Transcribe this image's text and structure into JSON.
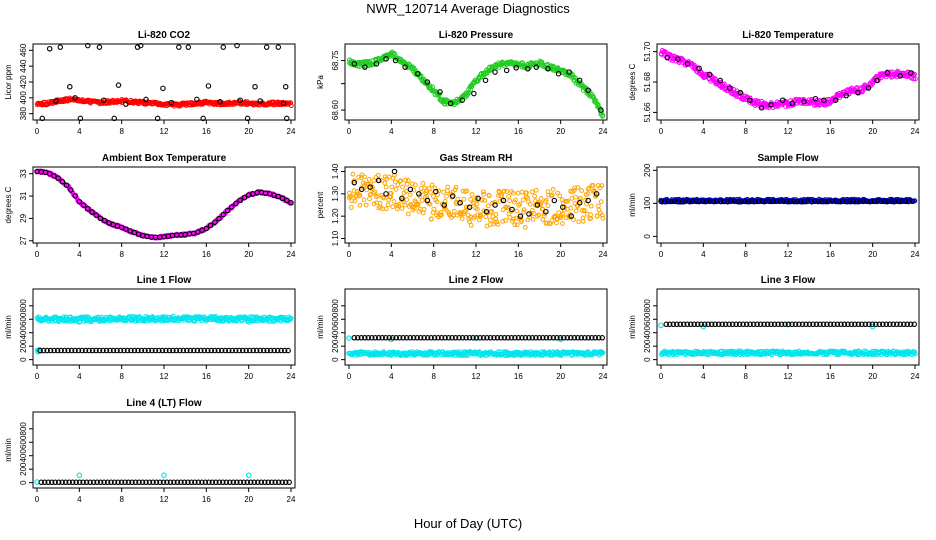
{
  "title": "NWR_120714  Average Diagnostics",
  "xlabel": "Hour of Day (UTC)",
  "x_ticks": [
    0,
    4,
    8,
    12,
    16,
    20,
    24
  ],
  "colors": {
    "black": "#000000",
    "red": "#ff0000",
    "green": "#22cc22",
    "magenta": "#ff00ff",
    "orange": "#ffa500",
    "blue": "#0000cc",
    "cyan": "#00e5ee"
  },
  "chart_data": [
    {
      "type": "scatter",
      "title": "Li-820 CO2",
      "ylabel": "Licor ppm",
      "xlim": [
        0,
        24
      ],
      "ylim": [
        372,
        468
      ],
      "yticks": [
        380,
        400,
        420,
        440,
        460
      ],
      "series": [
        {
          "color": "red",
          "style": "band",
          "width": 3,
          "x": [
            0,
            1,
            2,
            3,
            4,
            5,
            6,
            7,
            8,
            9,
            10,
            11,
            12,
            13,
            14,
            15,
            16,
            17,
            18,
            19,
            20,
            21,
            22,
            23,
            24
          ],
          "y": [
            392,
            393,
            396,
            398,
            397,
            395,
            394,
            395,
            396,
            395,
            394,
            393,
            392,
            391,
            392,
            393,
            394,
            393,
            393,
            394,
            393,
            392,
            393,
            393,
            392
          ]
        },
        {
          "color": "black",
          "style": "points",
          "x": [
            0.5,
            2.2,
            4.1,
            5.9,
            7.3,
            9.5,
            11.4,
            13.4,
            15.7,
            17.6,
            19.9,
            21.7,
            23.6
          ],
          "y": [
            374,
            464,
            374,
            464,
            374,
            464,
            374,
            464,
            374,
            464,
            374,
            464,
            374
          ]
        },
        {
          "color": "black",
          "style": "points",
          "x": [
            1.2,
            3.1,
            4.8,
            7.7,
            9.8,
            11.9,
            14.3,
            16.2,
            18.9,
            20.6,
            22.8,
            23.5
          ],
          "y": [
            462,
            414,
            466,
            416,
            466,
            412,
            464,
            415,
            466,
            414,
            464,
            414
          ]
        },
        {
          "color": "black",
          "style": "points",
          "x": [
            1.8,
            3.6,
            6.3,
            8.4,
            10.3,
            12.7,
            15.1,
            17.3,
            19.2,
            21.1,
            23.3
          ],
          "y": [
            396,
            400,
            397,
            392,
            398,
            394,
            398,
            395,
            397,
            396,
            393
          ]
        }
      ]
    },
    {
      "type": "scatter",
      "title": "Li-820 Pressure",
      "ylabel": "kPa",
      "xlim": [
        0,
        24
      ],
      "ylim": [
        68.57,
        68.8
      ],
      "yticks": [
        68.6,
        68.68,
        68.75
      ],
      "ytick_labels": [
        "68.60",
        "",
        "68.75"
      ],
      "series": [
        {
          "color": "green",
          "style": "band",
          "width": 5,
          "x": [
            0,
            1,
            2,
            3,
            4,
            5,
            6,
            7,
            8,
            9,
            10,
            11,
            12,
            13,
            14,
            15,
            16,
            17,
            18,
            19,
            20,
            21,
            22,
            23,
            24
          ],
          "y": [
            68.745,
            68.738,
            68.742,
            68.752,
            68.772,
            68.745,
            68.725,
            68.692,
            68.658,
            68.625,
            68.622,
            68.645,
            68.69,
            68.718,
            68.735,
            68.742,
            68.738,
            68.735,
            68.742,
            68.73,
            68.722,
            68.705,
            68.67,
            68.642,
            68.582
          ]
        },
        {
          "color": "black",
          "style": "points",
          "x": [
            0.5,
            1.5,
            2.6,
            3.5,
            4.4,
            5.3,
            6.5,
            7.4,
            8.6,
            9.6,
            10.7,
            11.8,
            12.9,
            13.8,
            14.9,
            15.8,
            16.9,
            17.7,
            18.8,
            19.8,
            20.8,
            21.8,
            22.6,
            23.8
          ],
          "y": [
            68.74,
            68.73,
            68.74,
            68.755,
            68.75,
            68.73,
            68.71,
            68.685,
            68.655,
            68.62,
            68.63,
            68.65,
            68.69,
            68.715,
            68.72,
            68.728,
            68.725,
            68.73,
            68.725,
            68.71,
            68.715,
            68.69,
            68.66,
            68.6
          ]
        }
      ]
    },
    {
      "type": "scatter",
      "title": "Li-820 Temperature",
      "ylabel": "degrees C",
      "xlim": [
        0,
        24
      ],
      "ylim": [
        51.655,
        51.705
      ],
      "yticks": [
        51.66,
        51.68,
        51.7
      ],
      "ytick_labels": [
        "51.66",
        "51.68",
        "51.70"
      ],
      "series": [
        {
          "color": "magenta",
          "style": "band",
          "width": 6,
          "x": [
            0,
            1,
            2,
            3,
            4,
            5,
            6,
            7,
            8,
            9,
            10,
            11,
            12,
            13,
            14,
            15,
            16,
            17,
            18,
            19,
            20,
            21,
            22,
            23,
            24
          ],
          "y": [
            51.7,
            51.696,
            51.694,
            51.69,
            51.685,
            51.681,
            51.677,
            51.673,
            51.669,
            51.666,
            51.665,
            51.665,
            51.666,
            51.667,
            51.667,
            51.666,
            51.667,
            51.672,
            51.674,
            51.675,
            51.68,
            51.685,
            51.685,
            51.686,
            51.683
          ]
        },
        {
          "color": "black",
          "style": "points",
          "x": [
            0.6,
            1.6,
            2.5,
            3.6,
            4.6,
            5.6,
            6.5,
            7.5,
            8.4,
            9.5,
            10.4,
            11.5,
            12.4,
            13.5,
            14.6,
            15.4,
            16.5,
            17.5,
            18.6,
            19.6,
            20.4,
            21.4,
            22.6,
            23.6
          ],
          "y": [
            51.696,
            51.695,
            51.692,
            51.689,
            51.685,
            51.681,
            51.676,
            51.673,
            51.668,
            51.663,
            51.665,
            51.668,
            51.666,
            51.667,
            51.669,
            51.668,
            51.668,
            51.671,
            51.673,
            51.676,
            51.681,
            51.686,
            51.684,
            51.686
          ]
        }
      ]
    },
    {
      "type": "scatter",
      "title": "Ambient Box Temperature",
      "ylabel": "degrees C",
      "xlim": [
        0,
        24
      ],
      "ylim": [
        26.8,
        33.6
      ],
      "yticks": [
        27,
        29,
        31,
        33
      ],
      "series": [
        {
          "color": "magenta",
          "style": "band",
          "width": 2,
          "x": [
            0,
            1,
            2,
            3,
            4,
            5,
            6,
            7,
            8,
            9,
            10,
            11,
            12,
            13,
            14,
            15,
            16,
            17,
            18,
            19,
            20,
            21,
            22,
            23,
            24
          ],
          "y": [
            33.2,
            33.1,
            32.6,
            31.8,
            30.5,
            29.7,
            29.0,
            28.5,
            28.2,
            27.8,
            27.45,
            27.3,
            27.35,
            27.5,
            27.55,
            27.7,
            28.1,
            28.8,
            29.7,
            30.5,
            31.1,
            31.35,
            31.2,
            30.9,
            30.4
          ]
        },
        {
          "color": "black",
          "style": "points",
          "x_step": 0.4,
          "x": [
            0,
            1,
            2,
            3,
            4,
            5,
            6,
            7,
            8,
            9,
            10,
            11,
            12,
            13,
            14,
            15,
            16,
            17,
            18,
            19,
            20,
            21,
            22,
            23,
            24
          ],
          "y": [
            33.2,
            33.1,
            32.6,
            31.8,
            30.5,
            29.7,
            29.0,
            28.5,
            28.2,
            27.8,
            27.45,
            27.3,
            27.35,
            27.5,
            27.55,
            27.7,
            28.1,
            28.8,
            29.7,
            30.5,
            31.1,
            31.35,
            31.2,
            30.9,
            30.4
          ]
        }
      ]
    },
    {
      "type": "scatter",
      "title": "Gas Stream RH",
      "ylabel": "percent",
      "xlim": [
        0,
        24
      ],
      "ylim": [
        1.08,
        1.42
      ],
      "yticks": [
        1.1,
        1.2,
        1.3,
        1.4
      ],
      "ytick_labels": [
        "1.10",
        "1.20",
        "1.30",
        "1.40"
      ],
      "series": [
        {
          "color": "orange",
          "style": "band",
          "width": 36,
          "x": [
            0,
            1,
            2,
            3,
            4,
            5,
            6,
            7,
            8,
            9,
            10,
            11,
            12,
            13,
            14,
            15,
            16,
            17,
            18,
            19,
            20,
            21,
            22,
            23,
            24
          ],
          "y": [
            1.31,
            1.315,
            1.31,
            1.305,
            1.31,
            1.3,
            1.28,
            1.27,
            1.265,
            1.26,
            1.25,
            1.24,
            1.23,
            1.235,
            1.24,
            1.235,
            1.23,
            1.225,
            1.24,
            1.245,
            1.245,
            1.25,
            1.255,
            1.26,
            1.27
          ]
        },
        {
          "color": "black",
          "style": "points",
          "x": [
            0.5,
            1.2,
            2.0,
            2.8,
            3.5,
            4.3,
            5.0,
            5.8,
            6.6,
            7.4,
            8.2,
            9.0,
            9.8,
            10.5,
            11.4,
            12.2,
            13.0,
            13.8,
            14.6,
            15.4,
            16.2,
            17.0,
            17.8,
            18.6,
            19.4,
            20.2,
            21.0,
            21.8,
            22.6,
            23.4
          ],
          "y": [
            1.35,
            1.32,
            1.33,
            1.36,
            1.3,
            1.4,
            1.28,
            1.32,
            1.3,
            1.27,
            1.31,
            1.25,
            1.29,
            1.26,
            1.24,
            1.28,
            1.22,
            1.25,
            1.27,
            1.23,
            1.2,
            1.21,
            1.25,
            1.22,
            1.27,
            1.24,
            1.2,
            1.26,
            1.27,
            1.3
          ]
        }
      ]
    },
    {
      "type": "scatter",
      "title": "Sample Flow",
      "ylabel": "ml/min",
      "xlim": [
        0,
        24
      ],
      "ylim": [
        -20,
        210
      ],
      "yticks": [
        0,
        100,
        200
      ],
      "series": [
        {
          "color": "blue",
          "style": "band",
          "width": 3,
          "x": [
            0,
            24
          ],
          "y": [
            108,
            108
          ]
        },
        {
          "color": "black",
          "style": "points",
          "x_step": 0.33,
          "x": [
            0,
            24
          ],
          "y": [
            106,
            106
          ]
        }
      ]
    },
    {
      "type": "scatter",
      "title": "Line 1 Flow",
      "ylabel": "ml/min",
      "xlim": [
        0,
        24
      ],
      "ylim": [
        -80,
        1050
      ],
      "yticks": [
        0,
        200,
        400,
        600,
        800
      ],
      "series": [
        {
          "color": "cyan",
          "style": "band",
          "width": 5,
          "x": [
            0,
            6,
            12,
            18,
            24
          ],
          "y": [
            600,
            600,
            610,
            605,
            600
          ]
        },
        {
          "color": "cyan",
          "style": "points",
          "x": [
            4,
            12,
            20
          ],
          "y": [
            560,
            580,
            560
          ]
        },
        {
          "color": "cyan",
          "style": "band",
          "width": 3,
          "x": [
            0,
            0.3
          ],
          "y": [
            130,
            130
          ]
        },
        {
          "color": "black",
          "style": "points",
          "x_step": 0.33,
          "x": [
            0.3,
            24
          ],
          "y": [
            135,
            135
          ]
        }
      ]
    },
    {
      "type": "scatter",
      "title": "Line 2 Flow",
      "ylabel": "ml/min",
      "xlim": [
        0,
        24
      ],
      "ylim": [
        -80,
        1050
      ],
      "yticks": [
        0,
        200,
        400,
        600,
        800
      ],
      "series": [
        {
          "color": "cyan",
          "style": "band",
          "width": 4,
          "x": [
            0,
            24
          ],
          "y": [
            90,
            90
          ]
        },
        {
          "color": "cyan",
          "style": "points",
          "x": [
            0,
            4,
            12,
            20
          ],
          "y": [
            320,
            300,
            320,
            300
          ]
        },
        {
          "color": "black",
          "style": "points",
          "x_step": 0.33,
          "x": [
            0.5,
            24
          ],
          "y": [
            325,
            325
          ]
        }
      ]
    },
    {
      "type": "scatter",
      "title": "Line 3 Flow",
      "ylabel": "ml/min",
      "xlim": [
        0,
        24
      ],
      "ylim": [
        -80,
        1050
      ],
      "yticks": [
        0,
        200,
        400,
        600,
        800
      ],
      "series": [
        {
          "color": "cyan",
          "style": "band",
          "width": 4,
          "x": [
            0,
            24
          ],
          "y": [
            100,
            100
          ]
        },
        {
          "color": "cyan",
          "style": "points",
          "x": [
            0,
            4,
            12,
            20
          ],
          "y": [
            510,
            490,
            520,
            490
          ]
        },
        {
          "color": "black",
          "style": "points",
          "x_step": 0.33,
          "x": [
            0.5,
            24
          ],
          "y": [
            525,
            525
          ]
        }
      ]
    },
    {
      "type": "scatter",
      "title": "Line 4 (LT) Flow",
      "ylabel": "ml/min",
      "xlim": [
        0,
        24
      ],
      "ylim": [
        -80,
        1050
      ],
      "yticks": [
        0,
        200,
        400,
        600,
        800
      ],
      "series": [
        {
          "color": "cyan",
          "style": "points",
          "x": [
            0,
            4,
            12,
            20
          ],
          "y": [
            10,
            110,
            110,
            110
          ]
        },
        {
          "color": "black",
          "style": "points",
          "x_step": 0.33,
          "x": [
            0.4,
            24
          ],
          "y": [
            5,
            5
          ]
        }
      ]
    }
  ]
}
